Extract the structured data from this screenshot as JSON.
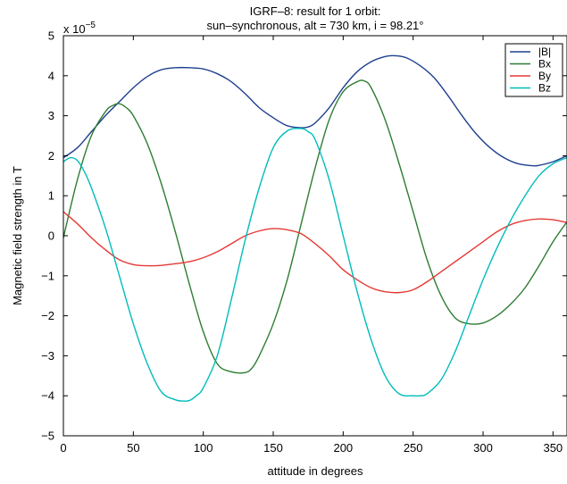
{
  "chart_data": {
    "type": "line",
    "title": "IGRF–8: result for 1 orbit:",
    "subtitle": "sun–synchronous, alt = 730 km, i = 98.21°",
    "xlabel": "attitude in degrees",
    "ylabel": "Magnetic field strength in T",
    "scale_prefix": "x 10",
    "scale_exponent": "−5",
    "xlim": [
      0,
      360
    ],
    "ylim": [
      -5,
      5
    ],
    "xticks": [
      0,
      50,
      100,
      150,
      200,
      250,
      300,
      350
    ],
    "yticks": [
      -5,
      -4,
      -3,
      -2,
      -1,
      0,
      1,
      2,
      3,
      4,
      5
    ],
    "xtick_labels": [
      "0",
      "50",
      "100",
      "150",
      "200",
      "250",
      "300",
      "350"
    ],
    "ytick_labels": [
      "−5",
      "−4",
      "−3",
      "−2",
      "−1",
      "0",
      "1",
      "2",
      "3",
      "4",
      "5"
    ],
    "grid": false,
    "legend_position": "top-right",
    "series": [
      {
        "name": "|B|",
        "color": "#1f3f8f",
        "x": [
          0,
          10,
          20,
          30,
          40,
          50,
          60,
          70,
          80,
          90,
          100,
          110,
          120,
          130,
          140,
          150,
          160,
          170,
          175,
          180,
          190,
          200,
          210,
          220,
          230,
          237,
          245,
          255,
          265,
          275,
          285,
          295,
          305,
          315,
          325,
          335,
          340,
          350,
          360
        ],
        "y": [
          1.95,
          2.2,
          2.6,
          3.0,
          3.35,
          3.7,
          3.98,
          4.15,
          4.2,
          4.2,
          4.17,
          4.05,
          3.85,
          3.55,
          3.2,
          2.95,
          2.75,
          2.7,
          2.72,
          2.82,
          3.2,
          3.7,
          4.1,
          4.35,
          4.48,
          4.5,
          4.45,
          4.25,
          3.95,
          3.5,
          3.0,
          2.55,
          2.2,
          1.95,
          1.8,
          1.75,
          1.76,
          1.85,
          2.0
        ]
      },
      {
        "name": "Bx",
        "color": "#2e7d32",
        "x": [
          0,
          10,
          20,
          30,
          35,
          40,
          45,
          50,
          60,
          70,
          80,
          90,
          100,
          110,
          120,
          130,
          135,
          140,
          150,
          160,
          170,
          180,
          190,
          200,
          210,
          215,
          220,
          230,
          240,
          250,
          260,
          270,
          280,
          290,
          300,
          310,
          320,
          330,
          340,
          350,
          360
        ],
        "y": [
          -0.05,
          1.4,
          2.5,
          3.1,
          3.25,
          3.3,
          3.2,
          3.0,
          2.3,
          1.3,
          0.1,
          -1.2,
          -2.4,
          -3.2,
          -3.4,
          -3.42,
          -3.3,
          -3.0,
          -2.2,
          -1.1,
          0.3,
          1.7,
          2.9,
          3.6,
          3.85,
          3.87,
          3.7,
          2.9,
          1.8,
          0.6,
          -0.6,
          -1.5,
          -2.05,
          -2.2,
          -2.18,
          -2.0,
          -1.7,
          -1.3,
          -0.75,
          -0.15,
          0.35
        ]
      },
      {
        "name": "By",
        "color": "#e53935",
        "x": [
          0,
          10,
          20,
          30,
          40,
          50,
          60,
          70,
          80,
          90,
          100,
          110,
          120,
          130,
          140,
          150,
          160,
          170,
          180,
          190,
          200,
          210,
          220,
          230,
          240,
          250,
          260,
          270,
          280,
          290,
          300,
          310,
          320,
          330,
          340,
          350,
          360
        ],
        "y": [
          0.6,
          0.3,
          -0.05,
          -0.35,
          -0.6,
          -0.72,
          -0.75,
          -0.74,
          -0.7,
          -0.65,
          -0.55,
          -0.4,
          -0.2,
          0.0,
          0.12,
          0.18,
          0.15,
          0.05,
          -0.2,
          -0.5,
          -0.85,
          -1.1,
          -1.3,
          -1.4,
          -1.42,
          -1.35,
          -1.15,
          -0.9,
          -0.65,
          -0.4,
          -0.15,
          0.1,
          0.28,
          0.38,
          0.42,
          0.4,
          0.33
        ]
      },
      {
        "name": "Bz",
        "color": "#00bcbc",
        "x": [
          0,
          5,
          10,
          15,
          20,
          30,
          40,
          50,
          60,
          70,
          80,
          85,
          90,
          95,
          100,
          110,
          120,
          130,
          140,
          150,
          160,
          170,
          175,
          180,
          190,
          200,
          210,
          220,
          230,
          240,
          250,
          255,
          260,
          270,
          280,
          290,
          300,
          310,
          320,
          330,
          340,
          350,
          360
        ],
        "y": [
          1.85,
          1.95,
          1.88,
          1.6,
          1.2,
          0.2,
          -1.0,
          -2.2,
          -3.2,
          -3.9,
          -4.1,
          -4.13,
          -4.12,
          -4.0,
          -3.8,
          -3.0,
          -1.6,
          -0.1,
          1.2,
          2.2,
          2.62,
          2.68,
          2.6,
          2.4,
          1.4,
          0.0,
          -1.4,
          -2.6,
          -3.5,
          -3.95,
          -4.0,
          -4.0,
          -3.95,
          -3.6,
          -2.9,
          -2.0,
          -1.1,
          -0.3,
          0.4,
          1.0,
          1.5,
          1.8,
          1.95
        ]
      }
    ]
  }
}
